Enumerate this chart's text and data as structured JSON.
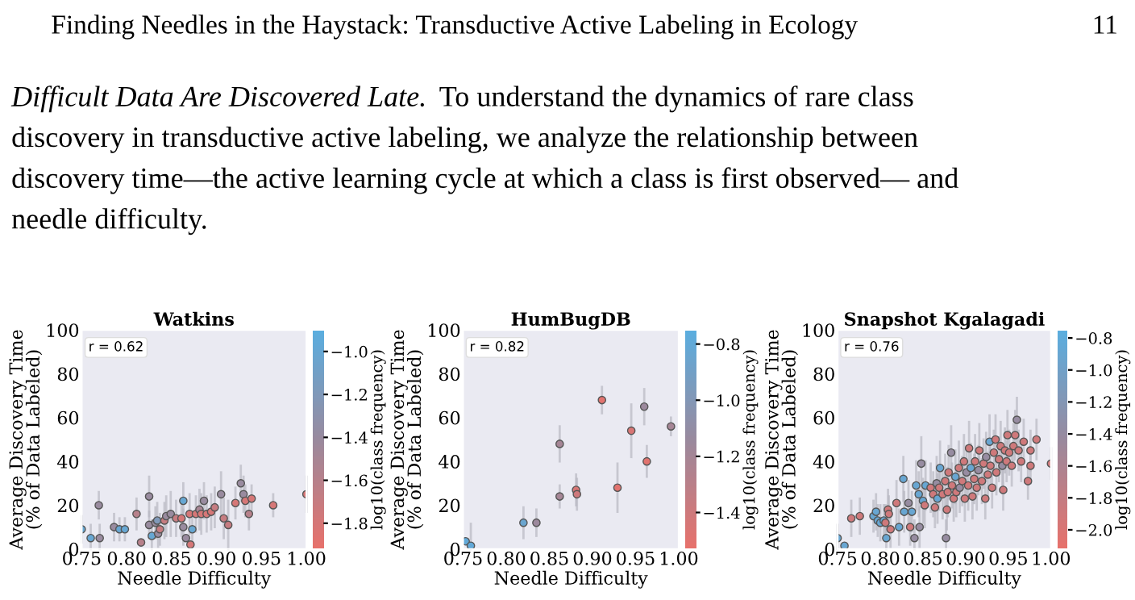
{
  "chart_data": [
    {
      "type": "other",
      "annotations": [
        "Finding Needles in the Haystack: Transductive Active Labeling in Ecology",
        "11",
        "Difficult Data Are Discovered Late.",
        "To understand the dynamics of rare class",
        "discovery in transductive active labeling, we analyze the relationship between",
        "discovery time—the active learning cycle at which a class is first observed— and",
        "needle difficulty."
      ]
    },
    {
      "type": "scatter",
      "title": "Watkins",
      "xlabel": "Needle Difficulty",
      "ylabel": "Average Discovery Time\n(% of Data Labeled)",
      "clabel": "log10(class frequency)",
      "grid": false,
      "xlim": [
        0.75,
        1.0
      ],
      "ylim": [
        0,
        100
      ],
      "xticks": [
        {
          "value": 0.75,
          "label": "0.75"
        },
        {
          "value": 0.8,
          "label": "0.80"
        },
        {
          "value": 0.85,
          "label": "0.85"
        },
        {
          "value": 0.9,
          "label": "0.90"
        },
        {
          "value": 0.95,
          "label": "0.95"
        },
        {
          "value": 1.0,
          "label": "1.00"
        }
      ],
      "yticks": [
        0,
        20,
        40,
        60,
        80,
        100
      ],
      "clim": [
        -1.92,
        -0.9
      ],
      "cticks": [
        {
          "value": -1.0,
          "label": "−1.0"
        },
        {
          "value": -1.2,
          "label": "−1.2"
        },
        {
          "value": -1.4,
          "label": "−1.4"
        },
        {
          "value": -1.6,
          "label": "−1.6"
        },
        {
          "value": -1.8,
          "label": "−1.8"
        }
      ],
      "annotations": [
        "r = 0.62"
      ],
      "x": [
        0.75,
        0.76,
        0.77,
        0.769,
        0.786,
        0.792,
        0.798,
        0.811,
        0.816,
        0.825,
        0.825,
        0.828,
        0.832,
        0.834,
        0.835,
        0.837,
        0.842,
        0.844,
        0.849,
        0.855,
        0.861,
        0.863,
        0.863,
        0.866,
        0.871,
        0.87,
        0.873,
        0.877,
        0.881,
        0.883,
        0.886,
        0.889,
        0.894,
        0.898,
        0.905,
        0.908,
        0.913,
        0.921,
        0.927,
        0.93,
        0.932,
        0.936,
        0.939,
        0.963,
        1.0
      ],
      "values": [
        9,
        5,
        5,
        20,
        10,
        9,
        9,
        16,
        3,
        24,
        11,
        6,
        12,
        13,
        7,
        9,
        13,
        15,
        16,
        14,
        14,
        10,
        22,
        5,
        2,
        16,
        9,
        16,
        18,
        16,
        22,
        16,
        17,
        19,
        25,
        14,
        11,
        21,
        30,
        25,
        22,
        16,
        23,
        20,
        25
      ],
      "cvalues": [
        -1.0,
        -1.0,
        -1.4,
        -1.4,
        -1.4,
        -1.0,
        -1.0,
        -1.6,
        -1.6,
        -1.4,
        -1.4,
        -1.0,
        -1.4,
        -1.2,
        -1.4,
        -1.7,
        -1.7,
        -1.4,
        -1.4,
        -1.7,
        -1.8,
        -1.4,
        -1.0,
        -1.4,
        -1.8,
        -1.8,
        -1.0,
        -1.8,
        -1.5,
        -1.8,
        -1.4,
        -1.8,
        -1.8,
        -1.7,
        -1.4,
        -1.7,
        -1.7,
        -1.8,
        -1.4,
        -1.4,
        -1.8,
        -1.6,
        -1.8,
        -1.8,
        -1.8
      ],
      "errors": [
        6,
        [
          0,
          11
        ],
        [
          0,
          11
        ],
        6,
        6,
        5,
        5,
        7,
        null,
        9,
        6,
        [
          0,
          13
        ],
        7,
        8,
        6,
        7,
        8,
        9,
        10,
        8,
        8,
        8,
        8,
        null,
        null,
        9,
        7,
        8,
        9,
        9,
        8,
        8,
        8,
        9,
        10,
        9,
        11,
        7,
        8,
        8,
        7,
        7,
        6,
        5,
        8
      ]
    },
    {
      "type": "scatter",
      "title": "HumBugDB",
      "xlabel": "Needle Difficulty",
      "ylabel": "Average Discovery Time\n(% of Data Labeled)",
      "clabel": "log10(class frequency)",
      "grid": false,
      "xlim": [
        0.75,
        1.0
      ],
      "ylim": [
        0,
        100
      ],
      "xticks": [
        {
          "value": 0.75,
          "label": "0.75"
        },
        {
          "value": 0.8,
          "label": "0.80"
        },
        {
          "value": 0.85,
          "label": "0.85"
        },
        {
          "value": 0.9,
          "label": "0.90"
        },
        {
          "value": 0.95,
          "label": "0.95"
        },
        {
          "value": 1.0,
          "label": "1.00"
        }
      ],
      "yticks": [
        0,
        20,
        40,
        60,
        80,
        100
      ],
      "clim": [
        -1.53,
        -0.75
      ],
      "cticks": [
        {
          "value": -0.8,
          "label": "−0.8"
        },
        {
          "value": -1.0,
          "label": "−1.0"
        },
        {
          "value": -1.2,
          "label": "−1.2"
        },
        {
          "value": -1.4,
          "label": "−1.4"
        }
      ],
      "annotations": [
        "r = 0.82"
      ],
      "x": [
        0.753,
        0.759,
        0.82,
        0.835,
        0.862,
        0.862,
        0.881,
        0.882,
        0.911,
        0.929,
        0.945,
        0.96,
        0.963,
        0.991
      ],
      "values": [
        3.5,
        1.5,
        12,
        12,
        24,
        48,
        27,
        25,
        68,
        28,
        54,
        65,
        40,
        56
      ],
      "cvalues": [
        -0.8,
        -0.8,
        -0.85,
        -1.15,
        -1.2,
        -1.2,
        -1.45,
        -1.4,
        -1.5,
        -1.5,
        -1.45,
        -1.15,
        -1.5,
        -1.2
      ],
      "errors": [
        null,
        [
          0,
          11.5
        ],
        7,
        6,
        5,
        8,
        7,
        7,
        6,
        11,
        12,
        8,
        7,
        4
      ]
    },
    {
      "type": "scatter",
      "title": "Snapshot Kgalagadi",
      "xlabel": "Needle Difficulty",
      "ylabel": "Average Discovery Time\n(% of Data Labeled)",
      "clabel": "log10(class frequency)",
      "grid": false,
      "xlim": [
        0.75,
        1.0
      ],
      "ylim": [
        0,
        100
      ],
      "xticks": [
        {
          "value": 0.75,
          "label": "0.75"
        },
        {
          "value": 0.8,
          "label": "0.80"
        },
        {
          "value": 0.85,
          "label": "0.85"
        },
        {
          "value": 0.9,
          "label": "0.90"
        },
        {
          "value": 0.95,
          "label": "0.95"
        },
        {
          "value": 1.0,
          "label": "1.00"
        }
      ],
      "yticks": [
        0,
        20,
        40,
        60,
        80,
        100
      ],
      "clim": [
        -2.12,
        -0.75
      ],
      "cticks": [
        {
          "value": -0.8,
          "label": "−0.8"
        },
        {
          "value": -1.0,
          "label": "−1.0"
        },
        {
          "value": -1.2,
          "label": "−1.2"
        },
        {
          "value": -1.4,
          "label": "−1.4"
        },
        {
          "value": -1.6,
          "label": "−1.6"
        },
        {
          "value": -1.8,
          "label": "−1.8"
        },
        {
          "value": -2.0,
          "label": "−2.0"
        }
      ],
      "annotations": [
        "r = 0.76"
      ],
      "x": [
        0.75,
        0.758,
        0.766,
        0.776,
        0.792,
        0.795,
        0.797,
        0.8,
        0.804,
        0.806,
        0.807,
        0.809,
        0.81,
        0.812,
        0.819,
        0.822,
        0.827,
        0.828,
        0.833,
        0.835,
        0.837,
        0.84,
        0.842,
        0.845,
        0.846,
        0.848,
        0.85,
        0.852,
        0.853,
        0.859,
        0.862,
        0.864,
        0.866,
        0.867,
        0.869,
        0.87,
        0.873,
        0.876,
        0.877,
        0.878,
        0.879,
        0.88,
        0.883,
        0.884,
        0.886,
        0.888,
        0.889,
        0.892,
        0.893,
        0.896,
        0.898,
        0.899,
        0.901,
        0.903,
        0.904,
        0.906,
        0.908,
        0.91,
        0.911,
        0.913,
        0.915,
        0.916,
        0.919,
        0.921,
        0.923,
        0.924,
        0.926,
        0.928,
        0.929,
        0.931,
        0.933,
        0.935,
        0.936,
        0.939,
        0.941,
        0.943,
        0.944,
        0.946,
        0.948,
        0.949,
        0.951,
        0.954,
        0.956,
        0.958,
        0.96,
        0.962,
        0.965,
        0.968,
        0.973,
        0.976,
        0.976,
        0.983,
        1.0
      ],
      "values": [
        5,
        1.5,
        14,
        15,
        15,
        17,
        13,
        12,
        13,
        12,
        5,
        18,
        16,
        9,
        21,
        10,
        32,
        17,
        21,
        10,
        17,
        5,
        29,
        25,
        10,
        39,
        22,
        20,
        29,
        28,
        25,
        19,
        30,
        23,
        28,
        37,
        25,
        31,
        5,
        18,
        26,
        35,
        44,
        29,
        23,
        33,
        26,
        37,
        28,
        31,
        40,
        23,
        35,
        29,
        46,
        37,
        24,
        32,
        40,
        28,
        36,
        45,
        31,
        39,
        23,
        42,
        34,
        49,
        38,
        28,
        44,
        50,
        35,
        41,
        47,
        38,
        27,
        45,
        40,
        52,
        44,
        38,
        47,
        52,
        59,
        45,
        40,
        49,
        31,
        45,
        38,
        50,
        39
      ],
      "cvalues": [
        -0.9,
        -0.9,
        -1.9,
        -1.9,
        -0.9,
        -0.9,
        -0.9,
        -0.9,
        -0.9,
        -1.9,
        -0.9,
        -1.9,
        -1.9,
        -1.9,
        -1.9,
        -0.9,
        -0.9,
        -0.9,
        -1.4,
        -1.9,
        -0.9,
        -1.4,
        -0.9,
        -0.9,
        -1.4,
        -1.4,
        -0.9,
        -1.9,
        -0.9,
        -1.9,
        -1.9,
        -1.9,
        -1.4,
        -0.9,
        -1.9,
        -0.9,
        -1.9,
        -1.9,
        -1.4,
        -1.9,
        -1.9,
        -1.9,
        -1.4,
        -1.9,
        -1.9,
        -0.9,
        -1.9,
        -1.9,
        -1.4,
        -1.9,
        -1.9,
        -1.9,
        -1.4,
        -1.9,
        -1.9,
        -0.9,
        -1.9,
        -1.9,
        -1.9,
        -1.9,
        -1.4,
        -1.9,
        -1.9,
        -1.9,
        -1.9,
        -1.4,
        -1.9,
        -0.9,
        -1.9,
        -1.9,
        -1.9,
        -1.9,
        -1.9,
        -1.9,
        -1.9,
        -1.4,
        -1.9,
        -1.9,
        -1.9,
        -1.9,
        -1.9,
        -1.9,
        -1.9,
        -1.9,
        -1.4,
        -1.9,
        -1.9,
        -1.9,
        -1.9,
        -1.9,
        -1.9,
        -1.9,
        -1.9
      ],
      "errors": [
        [
          0,
          11
        ],
        null,
        8,
        8,
        7,
        8,
        7,
        8,
        7,
        8,
        [
          0,
          13
        ],
        9,
        8,
        8,
        10,
        8,
        10,
        9,
        10,
        8,
        9,
        [
          0,
          13
        ],
        11,
        10,
        9,
        12,
        10,
        10,
        11,
        11,
        10,
        9,
        12,
        11,
        10,
        12,
        11,
        12,
        [
          0,
          13
        ],
        9,
        11,
        12,
        12,
        10,
        10,
        12,
        11,
        12,
        11,
        11,
        12,
        10,
        12,
        11,
        12,
        11,
        10,
        11,
        12,
        10,
        11,
        12,
        10,
        11,
        9,
        11,
        10,
        12,
        11,
        9,
        10,
        11,
        10,
        10,
        11,
        10,
        9,
        10,
        9,
        11,
        10,
        9,
        10,
        11,
        10,
        9,
        9,
        10,
        8,
        9,
        8,
        9,
        7
      ]
    }
  ]
}
